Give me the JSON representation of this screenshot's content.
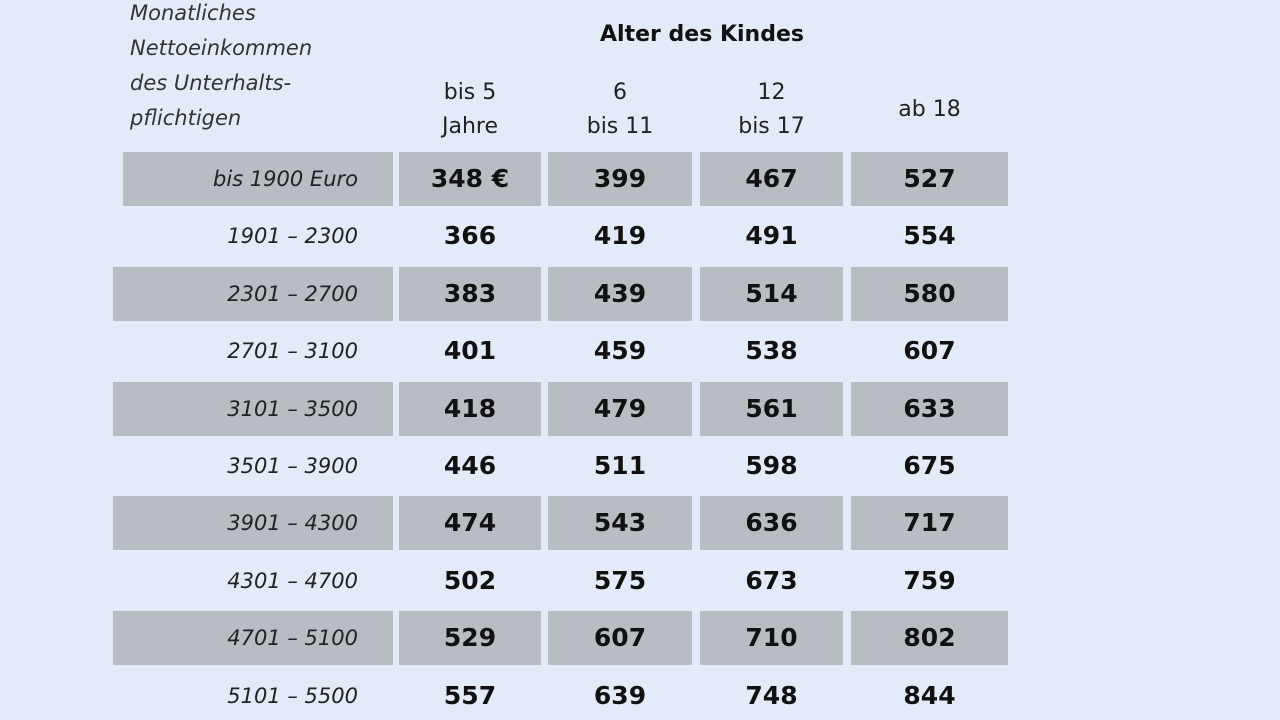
{
  "header": {
    "row_label": [
      "Monatliches",
      "Nettoeinkommen",
      "des Unterhalts-",
      "pflichtigen"
    ],
    "group": "Alter des Kindes",
    "columns": [
      [
        "bis 5",
        "Jahre"
      ],
      [
        "6",
        "bis 11"
      ],
      [
        "12",
        "bis 17"
      ],
      [
        "ab 18"
      ]
    ]
  },
  "table": {
    "rows": [
      [
        "bis 1900 Euro",
        "348 €",
        "399",
        "467",
        "527"
      ],
      [
        "1901 – 2300",
        "366",
        "419",
        "491",
        "554"
      ],
      [
        "2301 – 2700",
        "383",
        "439",
        "514",
        "580"
      ],
      [
        "2701 – 3100",
        "401",
        "459",
        "538",
        "607"
      ],
      [
        "3101 – 3500",
        "418",
        "479",
        "561",
        "633"
      ],
      [
        "3501 – 3900",
        "446",
        "511",
        "598",
        "675"
      ],
      [
        "3901 – 4300",
        "474",
        "543",
        "636",
        "717"
      ],
      [
        "4301 – 4700",
        "502",
        "575",
        "673",
        "759"
      ],
      [
        "4701 – 5100",
        "529",
        "607",
        "710",
        "802"
      ],
      [
        "5101 – 5500",
        "557",
        "639",
        "748",
        "844"
      ]
    ]
  }
}
